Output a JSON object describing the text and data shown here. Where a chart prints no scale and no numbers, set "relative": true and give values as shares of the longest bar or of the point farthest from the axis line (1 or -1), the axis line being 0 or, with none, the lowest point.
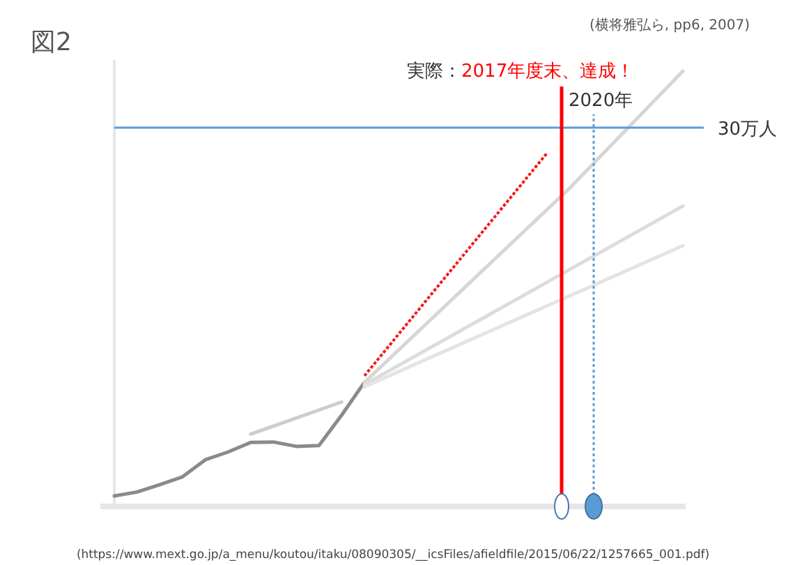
{
  "chart_data": {
    "type": "line",
    "relative": true,
    "marker": "none",
    "categories": [
      null,
      null,
      null,
      null,
      null,
      null,
      null,
      null,
      null,
      null,
      null,
      null,
      null,
      null,
      null,
      null,
      null,
      null,
      null,
      null,
      null,
      null,
      null,
      null,
      null,
      null
    ],
    "series": [
      {
        "color": "#8a8a8a",
        "line_style": "solid",
        "values": [
          0.024,
          0.033,
          0.05,
          0.068,
          0.107,
          0.125,
          0.147,
          0.148,
          0.138,
          0.14,
          0.21,
          0.285,
          null,
          null,
          null,
          null,
          null,
          null,
          null,
          null,
          null,
          null,
          null,
          null,
          null,
          null
        ]
      },
      {
        "color": "#d6d6d6",
        "line_style": "solid",
        "values": [
          null,
          null,
          null,
          null,
          null,
          null,
          null,
          null,
          null,
          null,
          null,
          0.285,
          null,
          null,
          null,
          null,
          null,
          null,
          null,
          null,
          0.73,
          null,
          null,
          null,
          null,
          1
        ]
      },
      {
        "color": "#dcdcdc",
        "line_style": "solid",
        "values": [
          null,
          null,
          null,
          null,
          null,
          null,
          null,
          null,
          null,
          null,
          null,
          0.28,
          null,
          null,
          null,
          null,
          null,
          null,
          null,
          null,
          null,
          null,
          null,
          null,
          null,
          0.69
        ]
      },
      {
        "color": "#e4e4e4",
        "line_style": "solid",
        "values": [
          null,
          null,
          null,
          null,
          null,
          null,
          null,
          null,
          null,
          null,
          null,
          0.275,
          null,
          null,
          null,
          null,
          null,
          null,
          null,
          null,
          null,
          null,
          null,
          null,
          null,
          0.599
        ]
      },
      {
        "color": "#cdcdcd",
        "line_style": "solid",
        "values": [
          null,
          null,
          null,
          null,
          null,
          null,
          0.166,
          null,
          null,
          null,
          0.24,
          null,
          null,
          null,
          null,
          null,
          null,
          null,
          null,
          null,
          null,
          null,
          null,
          null,
          null,
          null
        ]
      },
      {
        "color": "#f21c1c",
        "line_style": "dotted",
        "values": [
          null,
          null,
          null,
          null,
          null,
          null,
          null,
          null,
          null,
          null,
          null,
          0.3,
          null,
          null,
          null,
          null,
          null,
          null,
          null,
          0.81,
          null,
          null,
          null,
          null,
          null,
          null
        ]
      }
    ],
    "ref_lines": [
      {
        "axis": "y",
        "value": 0.87,
        "label": "30万人",
        "color": "#5b9bd5",
        "line_style": "solid"
      }
    ],
    "annotations": [
      "図2",
      "(横将雅弘ら, pp6, 2007)",
      "実際：",
      "2017年度末、達成！",
      "2020年",
      "(https://www.mext.go.jp/a_menu/koutou/itaku/08090305/__icsFiles/afieldfile/2015/06/22/1257665_001.pdf)"
    ]
  }
}
